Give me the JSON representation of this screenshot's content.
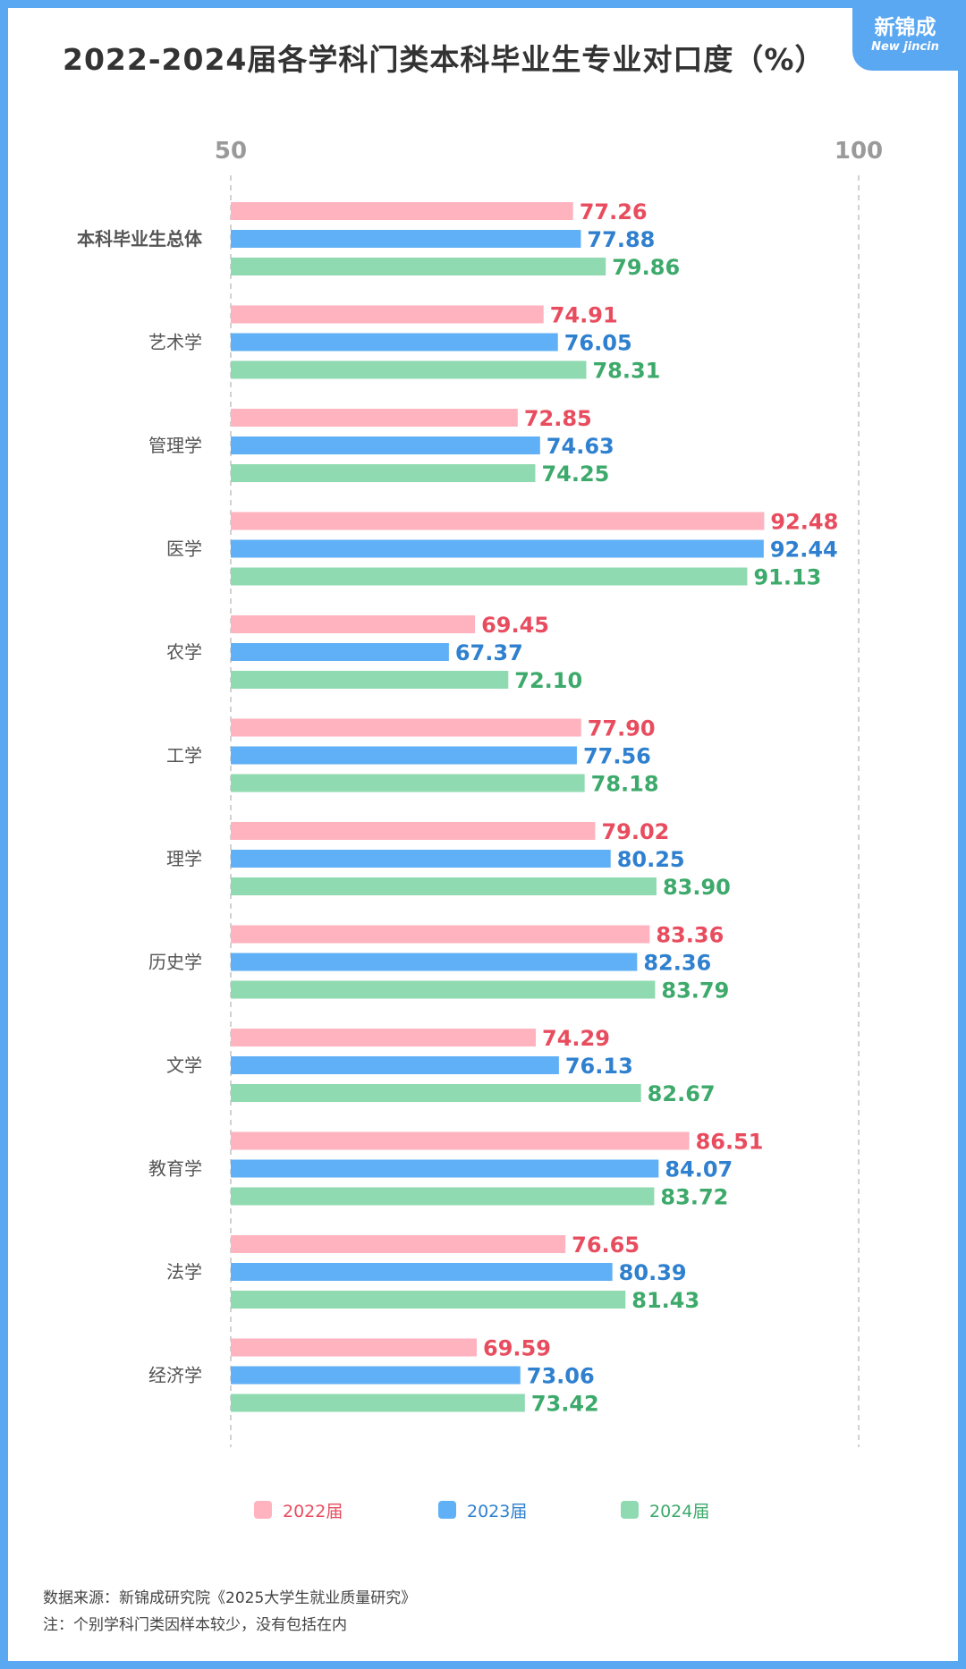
{
  "title": "2022-2024届各学科门类本科毕业生专业对口度（%）",
  "logo": {
    "cn": "新锦成",
    "en": "New jincin"
  },
  "chart_data": {
    "type": "bar",
    "orientation": "horizontal",
    "title": "2022-2024届各学科门类本科毕业生专业对口度（%）",
    "xlim": [
      50,
      100
    ],
    "axis_ticks": [
      "50",
      "100"
    ],
    "grid": true,
    "legend_position": "bottom",
    "categories": [
      "本科毕业生总体",
      "艺术学",
      "管理学",
      "医学",
      "农学",
      "工学",
      "理学",
      "历史学",
      "文学",
      "教育学",
      "法学",
      "经济学"
    ],
    "series": [
      {
        "name": "2022届",
        "color": "#ffb3bf",
        "label_color": "#e84d5f",
        "values": [
          77.26,
          74.91,
          72.85,
          92.48,
          69.45,
          77.9,
          79.02,
          83.36,
          74.29,
          86.51,
          76.65,
          69.59
        ],
        "labels": [
          "77.26",
          "74.91",
          "72.85",
          "92.48",
          "69.45",
          "77.90",
          "79.02",
          "83.36",
          "74.29",
          "86.51",
          "76.65",
          "69.59"
        ]
      },
      {
        "name": "2023届",
        "color": "#5fb0f6",
        "label_color": "#2f80cf",
        "values": [
          77.88,
          76.05,
          74.63,
          92.44,
          67.37,
          77.56,
          80.25,
          82.36,
          76.13,
          84.07,
          80.39,
          73.06
        ],
        "labels": [
          "77.88",
          "76.05",
          "74.63",
          "92.44",
          "67.37",
          "77.56",
          "80.25",
          "82.36",
          "76.13",
          "84.07",
          "80.39",
          "73.06"
        ]
      },
      {
        "name": "2024届",
        "color": "#8fdab0",
        "label_color": "#3daa6b",
        "values": [
          79.86,
          78.31,
          74.25,
          91.13,
          72.1,
          78.18,
          83.9,
          83.79,
          82.67,
          83.72,
          81.43,
          73.42
        ],
        "labels": [
          "79.86",
          "78.31",
          "74.25",
          "91.13",
          "72.10",
          "78.18",
          "83.90",
          "83.79",
          "82.67",
          "83.72",
          "81.43",
          "73.42"
        ]
      }
    ]
  },
  "footer": {
    "source": "数据来源：新锦成研究院《2025大学生就业质量研究》",
    "note": "注：个别学科门类因样本较少，没有包括在内"
  }
}
